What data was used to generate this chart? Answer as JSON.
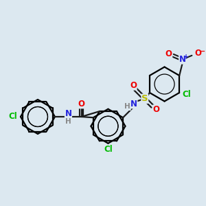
{
  "bg_color": "#dce8f0",
  "bond_color": "#1a1a1a",
  "atom_colors": {
    "Cl": "#00bb00",
    "O": "#ee0000",
    "N": "#2222dd",
    "S": "#bbbb00",
    "H": "#888888",
    "C": "#1a1a1a"
  },
  "figsize": [
    3.0,
    3.0
  ],
  "dpi": 100,
  "xlim": [
    0,
    12
  ],
  "ylim": [
    0,
    12
  ]
}
